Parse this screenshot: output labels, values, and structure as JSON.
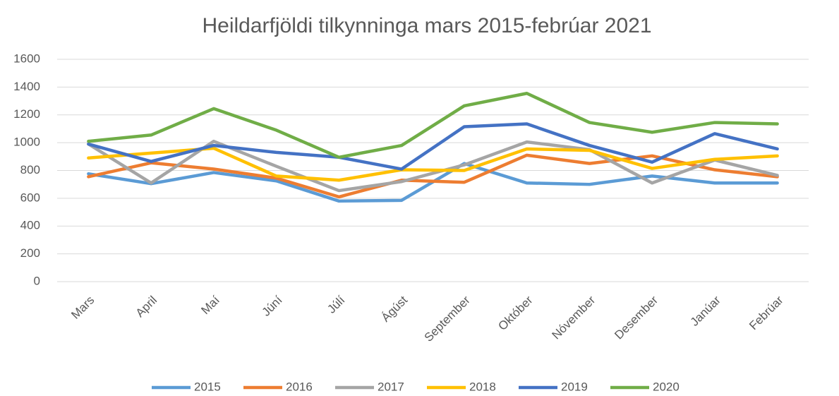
{
  "chart_data": {
    "type": "line",
    "title": "Heildarfjöldi tilkynninga mars 2015-febrúar 2021",
    "categories": [
      "Mars",
      "April",
      "Maí",
      "Júní",
      "Júlí",
      "Ágúst",
      "September",
      "Október",
      "Nóvember",
      "Desember",
      "Janúar",
      "Febrúar"
    ],
    "series": [
      {
        "name": "2015",
        "color": "#5b9bd5",
        "values": [
          776,
          705,
          785,
          725,
          580,
          585,
          850,
          710,
          700,
          760,
          710,
          710
        ]
      },
      {
        "name": "2016",
        "color": "#ed7d31",
        "values": [
          755,
          855,
          810,
          745,
          610,
          730,
          715,
          910,
          850,
          905,
          805,
          755
        ]
      },
      {
        "name": "2017",
        "color": "#a5a5a5",
        "values": [
          990,
          710,
          1010,
          830,
          655,
          720,
          840,
          1005,
          950,
          710,
          875,
          765
        ]
      },
      {
        "name": "2018",
        "color": "#ffc000",
        "values": [
          890,
          925,
          960,
          760,
          730,
          805,
          800,
          955,
          945,
          815,
          880,
          905
        ]
      },
      {
        "name": "2019",
        "color": "#4472c4",
        "values": [
          990,
          865,
          980,
          930,
          895,
          810,
          1115,
          1135,
          980,
          860,
          1065,
          955
        ]
      },
      {
        "name": "2020",
        "color": "#70ad47",
        "values": [
          1010,
          1055,
          1245,
          1090,
          895,
          980,
          1265,
          1355,
          1145,
          1075,
          1145,
          1135
        ]
      }
    ],
    "ylim": [
      0,
      1600
    ],
    "yticks": [
      0,
      200,
      400,
      600,
      800,
      1000,
      1200,
      1400,
      1600
    ],
    "grid": true,
    "legend": "bottom"
  }
}
